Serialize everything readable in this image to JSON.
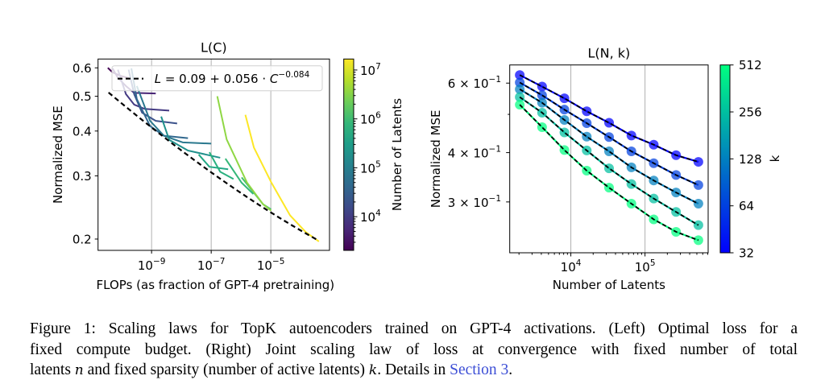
{
  "caption": {
    "line1": "Figure 1: Scaling laws for TopK autoencoders trained on GPT-4 activations. (Left) Optimal loss for a",
    "line2": "fixed compute budget. (Right) Joint scaling law of loss at convergence with fixed number of total",
    "line3_a": "latents ",
    "var_n": "n",
    "line3_b": " and fixed sparsity (number of active latents) ",
    "var_k": "k",
    "line3_c": ". Details in ",
    "link": "Section 3",
    "line3_d": ".",
    "link_color": "#3d4fd6"
  },
  "chart_data": [
    {
      "type": "line",
      "title": "L(C)",
      "xlabel": "FLOPs (as fraction of GPT-4 pretraining)",
      "ylabel": "Normalized MSE",
      "xscale": "log",
      "yscale": "log",
      "xlim": [
        1.6e-11,
        0.00093
      ],
      "ylim": [
        0.186,
        0.635
      ],
      "grid": "x-major",
      "xticks": [
        {
          "value": 1e-09,
          "base": "10",
          "exp": "−9"
        },
        {
          "value": 1e-07,
          "base": "10",
          "exp": "−7"
        },
        {
          "value": 1e-05,
          "base": "10",
          "exp": "−5"
        }
      ],
      "yticks": [
        {
          "value": 0.6,
          "label": "0.6"
        },
        {
          "value": 0.5,
          "label": "0.5"
        },
        {
          "value": 0.4,
          "label": "0.4"
        },
        {
          "value": 0.3,
          "label": "0.3"
        },
        {
          "value": 0.2,
          "label": "0.2"
        }
      ],
      "legend": {
        "placement": "upper-center",
        "lhs": "L",
        "mid": " = 0.09 + 0.056 · ",
        "var": "C",
        "exp": "−0.084"
      },
      "fit": {
        "a": 0.09,
        "b": 0.056,
        "c": -0.084,
        "x_range": [
          3.6e-11,
          0.00041
        ],
        "color": "#000000",
        "style": "dashed"
      },
      "series": [
        {
          "color": "#440154",
          "points": [
            [
              3.4e-11,
              0.6
            ],
            [
              4.9e-11,
              0.583
            ],
            [
              9.1e-11,
              0.57
            ],
            [
              1.7e-10,
              0.562
            ]
          ]
        },
        {
          "color": "#482475",
          "points": [
            [
              4.9e-11,
              0.598
            ],
            [
              7.4e-11,
              0.563
            ],
            [
              1.38e-10,
              0.534
            ],
            [
              2.6e-10,
              0.511
            ],
            [
              1.38e-09,
              0.509
            ]
          ]
        },
        {
          "color": "#443a83",
          "points": [
            [
              7.4e-11,
              0.593
            ],
            [
              1.38e-10,
              0.507
            ],
            [
              2.6e-10,
              0.474
            ],
            [
              5.9e-10,
              0.461
            ],
            [
              3.9e-09,
              0.456
            ]
          ]
        },
        {
          "color": "#3b528b",
          "points": [
            [
              1.7e-10,
              0.593
            ],
            [
              2.6e-10,
              0.507
            ],
            [
              4.8e-10,
              0.45
            ],
            [
              1.38e-09,
              0.427
            ],
            [
              7.2e-09,
              0.42
            ]
          ]
        },
        {
          "color": "#31688e",
          "points": [
            [
              2.1e-10,
              0.598
            ],
            [
              3.2e-10,
              0.491
            ],
            [
              8.9e-10,
              0.413
            ],
            [
              2.6e-09,
              0.388
            ],
            [
              1.66e-08,
              0.382
            ]
          ]
        },
        {
          "color": "#2a788e",
          "points": [
            [
              3.2e-10,
              0.534
            ],
            [
              8.9e-10,
              0.427
            ],
            [
              2.6e-09,
              0.388
            ],
            [
              1.1e-08,
              0.372
            ],
            [
              1e-07,
              0.369
            ]
          ]
        },
        {
          "color": "#21918c",
          "points": [
            [
              2.1e-09,
              0.439
            ],
            [
              3.9e-09,
              0.378
            ],
            [
              1.66e-08,
              0.353
            ],
            [
              2e-07,
              0.337
            ]
          ]
        },
        {
          "color": "#22a884",
          "points": [
            [
              3.8e-08,
              0.344
            ],
            [
              8.7e-08,
              0.318
            ],
            [
              3.7e-07,
              0.313
            ]
          ]
        },
        {
          "color": "#2ab07f",
          "points": [
            [
              8.7e-08,
              0.349
            ],
            [
              2e-07,
              0.308
            ],
            [
              5.6e-07,
              0.294
            ]
          ]
        },
        {
          "color": "#35b779",
          "points": [
            [
              3e-07,
              0.335
            ],
            [
              1.05e-06,
              0.287
            ],
            [
              2.6e-06,
              0.267
            ]
          ]
        },
        {
          "color": "#44bf70",
          "points": [
            [
              1.05e-06,
              0.297
            ],
            [
              5.5e-06,
              0.25
            ],
            [
              1.02e-05,
              0.242
            ]
          ]
        },
        {
          "color": "#8fd744",
          "points": [
            [
              1.6e-07,
              0.5
            ],
            [
              3.3e-07,
              0.379
            ],
            [
              1.6e-06,
              0.287
            ],
            [
              5.5e-06,
              0.25
            ],
            [
              1.02e-05,
              0.24
            ]
          ]
        },
        {
          "color": "#fde725",
          "points": [
            [
              1.4e-06,
              0.444
            ],
            [
              2.7e-06,
              0.36
            ],
            [
              1.05e-05,
              0.287
            ],
            [
              4.4e-05,
              0.233
            ],
            [
              0.00015,
              0.209
            ],
            [
              0.00041,
              0.197
            ]
          ]
        }
      ],
      "colorbar": {
        "label": "Number of Latents",
        "scale": "log",
        "range": [
          2048,
          16777216
        ],
        "colormap": "viridis",
        "colors": [
          "#440154",
          "#482878",
          "#3e4a89",
          "#31688e",
          "#26828e",
          "#1f9e89",
          "#35b779",
          "#6ece58",
          "#b5de2b",
          "#fde725"
        ],
        "ticks": [
          {
            "value": 10000.0,
            "base": "10",
            "exp": "4"
          },
          {
            "value": 100000.0,
            "base": "10",
            "exp": "5"
          },
          {
            "value": 1000000.0,
            "base": "10",
            "exp": "6"
          },
          {
            "value": 10000000.0,
            "base": "10",
            "exp": "7"
          }
        ]
      }
    },
    {
      "type": "line+scatter",
      "title": "L(N, k)",
      "xlabel": "Number of Latents",
      "ylabel": "Normalized MSE",
      "xscale": "log",
      "yscale": "log",
      "xlim": [
        1500,
        710000
      ],
      "ylim": [
        0.223,
        0.667
      ],
      "grid": "x-major",
      "x": [
        2048,
        4096,
        8192,
        16384,
        32768,
        65536,
        131072,
        262144,
        524288
      ],
      "xticks": [
        {
          "value": 10000,
          "base": "10",
          "exp": "4"
        },
        {
          "value": 100000,
          "base": "10",
          "exp": "5"
        }
      ],
      "yticks": [
        {
          "value": 0.6,
          "coef": "6 × 10",
          "exp": "−1"
        },
        {
          "value": 0.4,
          "coef": "4 × 10",
          "exp": "−1"
        },
        {
          "value": 0.3,
          "coef": "3 × 10",
          "exp": "−1"
        }
      ],
      "fit_style": "dashed black",
      "series": [
        {
          "k": 32,
          "color": "#0000ff",
          "values": [
            0.629,
            0.588,
            0.549,
            0.509,
            0.476,
            0.442,
            0.419,
            0.394,
            0.379
          ]
        },
        {
          "k": 64,
          "color": "#0040df",
          "values": [
            0.602,
            0.559,
            0.514,
            0.475,
            0.438,
            0.403,
            0.376,
            0.351,
            0.331
          ]
        },
        {
          "k": 128,
          "color": "#0080bf",
          "values": [
            0.579,
            0.535,
            0.484,
            0.439,
            0.403,
            0.367,
            0.34,
            0.317,
            0.297
          ]
        },
        {
          "k": 256,
          "color": "#00bf9f",
          "values": [
            0.553,
            0.505,
            0.45,
            0.405,
            0.365,
            0.333,
            0.306,
            0.283,
            0.262
          ]
        },
        {
          "k": 512,
          "color": "#00ff80",
          "values": [
            0.529,
            0.464,
            0.406,
            0.36,
            0.326,
            0.297,
            0.271,
            0.252,
            0.24
          ]
        }
      ],
      "colorbar": {
        "label": "k",
        "scale": "log2",
        "range": [
          32,
          512
        ],
        "colormap": "winter",
        "colors": [
          "#0000ff",
          "#00ff80"
        ],
        "ticks": [
          {
            "value": 32,
            "label": "32"
          },
          {
            "value": 64,
            "label": "64"
          },
          {
            "value": 128,
            "label": "128"
          },
          {
            "value": 256,
            "label": "256"
          },
          {
            "value": 512,
            "label": "512"
          }
        ]
      }
    }
  ]
}
